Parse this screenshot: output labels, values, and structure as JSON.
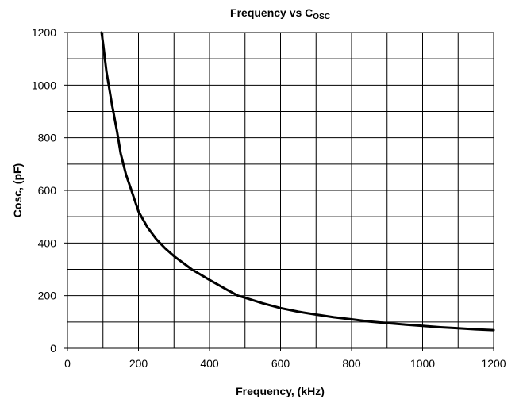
{
  "chart_data": {
    "type": "line",
    "title": "Frequency vs C",
    "title_subscript": "OSC",
    "xlabel": "Frequency, (kHz)",
    "ylabel": "Cosc, (pF)",
    "xlim": [
      0,
      1200
    ],
    "ylim": [
      0,
      1200
    ],
    "x_ticks": [
      0,
      200,
      400,
      600,
      800,
      1000,
      1200
    ],
    "y_ticks": [
      0,
      200,
      400,
      600,
      800,
      1000,
      1200
    ],
    "x_tick_labels": [
      "0",
      "200",
      "400",
      "600",
      "800",
      "1000",
      "1200"
    ],
    "y_tick_labels": [
      "0",
      "200",
      "400",
      "600",
      "800",
      "1000",
      "1200"
    ],
    "x_grid_step": 100,
    "y_grid_step": 100,
    "grid": true,
    "line_color": "#000000",
    "series": [
      {
        "x": [
          96,
          100,
          110,
          125,
          140,
          150,
          165,
          180,
          200,
          225,
          250,
          275,
          300,
          350,
          400,
          450,
          480,
          500,
          550,
          600,
          650,
          700,
          750,
          800,
          850,
          900,
          950,
          1000,
          1050,
          1100,
          1150,
          1200
        ],
        "y": [
          1200,
          1160,
          1050,
          930,
          820,
          740,
          660,
          600,
          520,
          460,
          415,
          380,
          350,
          300,
          260,
          222,
          200,
          192,
          171,
          153,
          139,
          128,
          118,
          110,
          102,
          96,
          90,
          85,
          80,
          76,
          72,
          69
        ]
      }
    ]
  }
}
